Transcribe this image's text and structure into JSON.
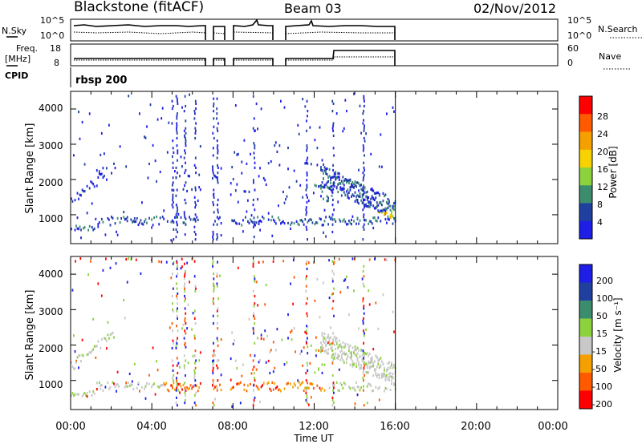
{
  "header": {
    "station": "Blackstone (fitACF)",
    "beam": "Beam 03",
    "date": "02/Nov/2012"
  },
  "top_panels": {
    "nsky_label": "N.Sky",
    "nsky_ticks": [
      "10^5",
      "10^0"
    ],
    "nsearch_label": "N.Search",
    "nsearch_ticks": [
      "10^5",
      "10^0"
    ],
    "freq_label_1": "Freq.",
    "freq_label_2": "[MHz]",
    "freq_ticks": [
      "18",
      "8"
    ],
    "nave_label": "Nave",
    "nave_ticks": [
      "60",
      "0"
    ],
    "cpid_label": "CPID",
    "cpid_value": "rbsp 200"
  },
  "colors": {
    "power": [
      "#1e1ee6",
      "#2040a0",
      "#3c8c6e",
      "#8cd23c",
      "#f5d200",
      "#f5a000",
      "#ff5a00",
      "#ff0000"
    ],
    "velocity": [
      "#1e1ee6",
      "#2040a0",
      "#3c8c6e",
      "#8cd23c",
      "#c8c8c8",
      "#f5a000",
      "#ff5a00",
      "#ff0000"
    ]
  },
  "chart_data": [
    {
      "type": "heatmap",
      "name": "power",
      "ylabel": "Slant Range [km]",
      "yticks": [
        "1000",
        "2000",
        "3000",
        "4000"
      ],
      "ylim": [
        180,
        4500
      ],
      "xlim": [
        0,
        24
      ],
      "xlabel": "Time UT",
      "xticks": [
        "00:00",
        "04:00",
        "08:00",
        "12:00",
        "16:00",
        "20:00",
        "00:00"
      ],
      "colorbar_label": "Power [dB]",
      "colorbar_ticks": [
        "4",
        "8",
        "12",
        "16",
        "20",
        "24",
        "28"
      ],
      "data_time_range": [
        0.0,
        16.0
      ],
      "data_gaps": [
        [
          6.4,
          6.9
        ],
        [
          7.4,
          7.8
        ]
      ]
    },
    {
      "type": "heatmap",
      "name": "velocity",
      "ylabel": "Slant Range [km]",
      "yticks": [
        "1000",
        "2000",
        "3000",
        "4000"
      ],
      "ylim": [
        180,
        4500
      ],
      "xlim": [
        0,
        24
      ],
      "xlabel": "Time UT",
      "xticks": [
        "00:00",
        "04:00",
        "08:00",
        "12:00",
        "16:00",
        "20:00",
        "00:00"
      ],
      "colorbar_label": "Velocity [m s⁻¹]",
      "colorbar_ticks": [
        "200",
        "100",
        "50",
        "15",
        "-15",
        "-50",
        "-100",
        "-200"
      ],
      "data_time_range": [
        0.0,
        16.0
      ],
      "data_gaps": [
        [
          6.4,
          6.9
        ],
        [
          7.4,
          7.8
        ]
      ]
    }
  ]
}
